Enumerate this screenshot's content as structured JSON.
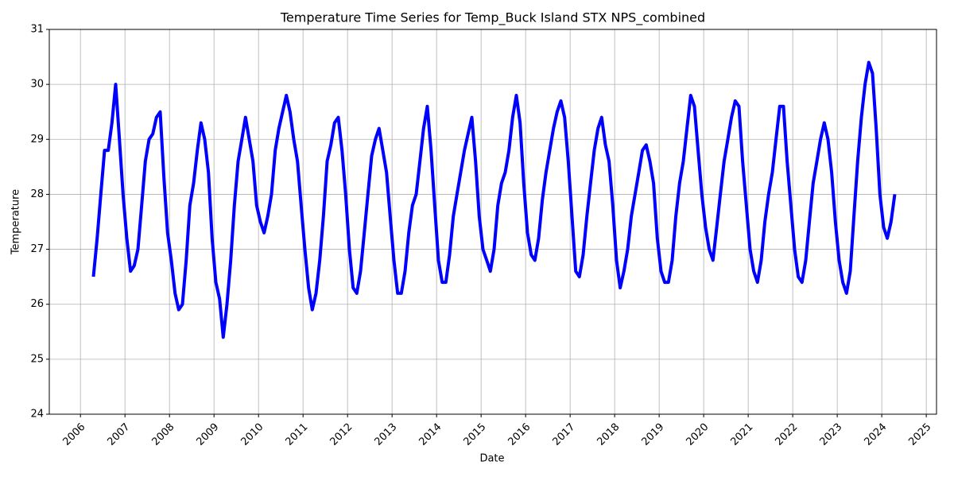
{
  "chart_data": {
    "type": "line",
    "title": "Temperature Time Series for Temp_Buck Island STX NPS_combined",
    "x_label": "Date",
    "y_label": "Temperature",
    "x": [
      2006.292,
      2006.375,
      2006.458,
      2006.542,
      2006.625,
      2006.708,
      2006.792,
      2006.875,
      2006.958,
      2007.042,
      2007.125,
      2007.208,
      2007.292,
      2007.375,
      2007.458,
      2007.542,
      2007.625,
      2007.708,
      2007.792,
      2007.875,
      2007.958,
      2008.042,
      2008.125,
      2008.208,
      2008.292,
      2008.375,
      2008.458,
      2008.542,
      2008.625,
      2008.708,
      2008.792,
      2008.875,
      2008.958,
      2009.042,
      2009.125,
      2009.208,
      2009.292,
      2009.375,
      2009.458,
      2009.542,
      2009.625,
      2009.708,
      2009.792,
      2009.875,
      2009.958,
      2010.042,
      2010.125,
      2010.208,
      2010.292,
      2010.375,
      2010.458,
      2010.542,
      2010.625,
      2010.708,
      2010.792,
      2010.875,
      2010.958,
      2011.042,
      2011.125,
      2011.208,
      2011.292,
      2011.375,
      2011.458,
      2011.542,
      2011.625,
      2011.708,
      2011.792,
      2011.875,
      2011.958,
      2012.042,
      2012.125,
      2012.208,
      2012.292,
      2012.375,
      2012.458,
      2012.542,
      2012.625,
      2012.708,
      2012.792,
      2012.875,
      2012.958,
      2013.042,
      2013.125,
      2013.208,
      2013.292,
      2013.375,
      2013.458,
      2013.542,
      2013.625,
      2013.708,
      2013.792,
      2013.875,
      2013.958,
      2014.042,
      2014.125,
      2014.208,
      2014.292,
      2014.375,
      2014.458,
      2014.542,
      2014.625,
      2014.708,
      2014.792,
      2014.875,
      2014.958,
      2015.042,
      2015.125,
      2015.208,
      2015.292,
      2015.375,
      2015.458,
      2015.542,
      2015.625,
      2015.708,
      2015.792,
      2015.875,
      2015.958,
      2016.042,
      2016.125,
      2016.208,
      2016.292,
      2016.375,
      2016.458,
      2016.542,
      2016.625,
      2016.708,
      2016.792,
      2016.875,
      2016.958,
      2017.042,
      2017.125,
      2017.208,
      2017.292,
      2017.375,
      2017.458,
      2017.542,
      2017.625,
      2017.708,
      2017.792,
      2017.875,
      2017.958,
      2018.042,
      2018.125,
      2018.208,
      2018.292,
      2018.375,
      2018.458,
      2018.542,
      2018.625,
      2018.708,
      2018.792,
      2018.875,
      2018.958,
      2019.042,
      2019.125,
      2019.208,
      2019.292,
      2019.375,
      2019.458,
      2019.542,
      2019.625,
      2019.708,
      2019.792,
      2019.875,
      2019.958,
      2020.042,
      2020.125,
      2020.208,
      2020.292,
      2020.375,
      2020.458,
      2020.542,
      2020.625,
      2020.708,
      2020.792,
      2020.875,
      2020.958,
      2021.042,
      2021.125,
      2021.208,
      2021.292,
      2021.375,
      2021.458,
      2021.542,
      2021.625,
      2021.708,
      2021.792,
      2021.875,
      2021.958,
      2022.042,
      2022.125,
      2022.208,
      2022.292,
      2022.375,
      2022.458,
      2022.542,
      2022.625,
      2022.708,
      2022.792,
      2022.875,
      2022.958,
      2023.042,
      2023.125,
      2023.208,
      2023.292,
      2023.375,
      2023.458,
      2023.542,
      2023.625,
      2023.708,
      2023.792,
      2023.875,
      2023.958,
      2024.042,
      2024.125,
      2024.208,
      2024.292
    ],
    "values": [
      26.5,
      27.2,
      28.0,
      28.8,
      28.8,
      29.3,
      30.0,
      29.0,
      28.0,
      27.2,
      26.6,
      26.7,
      27.0,
      27.8,
      28.6,
      29.0,
      29.1,
      29.4,
      29.5,
      28.3,
      27.3,
      26.8,
      26.2,
      25.9,
      26.0,
      26.8,
      27.8,
      28.2,
      28.8,
      29.3,
      29.0,
      28.4,
      27.2,
      26.4,
      26.1,
      25.4,
      26.0,
      26.8,
      27.8,
      28.6,
      29.0,
      29.4,
      29.0,
      28.6,
      27.8,
      27.5,
      27.3,
      27.6,
      28.0,
      28.8,
      29.2,
      29.5,
      29.8,
      29.5,
      29.0,
      28.6,
      27.8,
      27.0,
      26.3,
      25.9,
      26.2,
      26.8,
      27.6,
      28.6,
      28.9,
      29.3,
      29.4,
      28.8,
      28.0,
      27.0,
      26.3,
      26.2,
      26.6,
      27.3,
      28.0,
      28.7,
      29.0,
      29.2,
      28.8,
      28.4,
      27.6,
      26.8,
      26.2,
      26.2,
      26.6,
      27.3,
      27.8,
      28.0,
      28.6,
      29.2,
      29.6,
      28.8,
      27.8,
      26.8,
      26.4,
      26.4,
      26.9,
      27.6,
      28.0,
      28.4,
      28.8,
      29.1,
      29.4,
      28.6,
      27.6,
      27.0,
      26.8,
      26.6,
      27.0,
      27.8,
      28.2,
      28.4,
      28.8,
      29.4,
      29.8,
      29.3,
      28.2,
      27.3,
      26.9,
      26.8,
      27.2,
      27.9,
      28.4,
      28.8,
      29.2,
      29.5,
      29.7,
      29.4,
      28.6,
      27.6,
      26.6,
      26.5,
      26.9,
      27.6,
      28.2,
      28.8,
      29.2,
      29.4,
      28.9,
      28.6,
      27.8,
      26.8,
      26.3,
      26.6,
      27.0,
      27.6,
      28.0,
      28.4,
      28.8,
      28.9,
      28.6,
      28.2,
      27.2,
      26.6,
      26.4,
      26.4,
      26.8,
      27.6,
      28.2,
      28.6,
      29.2,
      29.8,
      29.6,
      28.8,
      28.0,
      27.4,
      27.0,
      26.8,
      27.4,
      28.0,
      28.6,
      29.0,
      29.4,
      29.7,
      29.6,
      28.6,
      27.8,
      27.0,
      26.6,
      26.4,
      26.8,
      27.5,
      28.0,
      28.4,
      29.0,
      29.6,
      29.6,
      28.6,
      27.8,
      27.0,
      26.5,
      26.4,
      26.8,
      27.5,
      28.2,
      28.6,
      29.0,
      29.3,
      29.0,
      28.4,
      27.5,
      26.8,
      26.4,
      26.2,
      26.6,
      27.6,
      28.6,
      29.4,
      30.0,
      30.4,
      30.2,
      29.2,
      28.0,
      27.4,
      27.2,
      27.5,
      28.0
    ],
    "color": "#0000ff",
    "xlim": [
      2005.3,
      2025.23
    ],
    "xticks": [
      2006,
      2007,
      2008,
      2009,
      2010,
      2011,
      2012,
      2013,
      2014,
      2015,
      2016,
      2017,
      2018,
      2019,
      2020,
      2021,
      2022,
      2023,
      2024,
      2025
    ],
    "ylim": [
      24,
      31
    ],
    "yticks": [
      24,
      25,
      26,
      27,
      28,
      29,
      30,
      31
    ],
    "grid": true
  }
}
